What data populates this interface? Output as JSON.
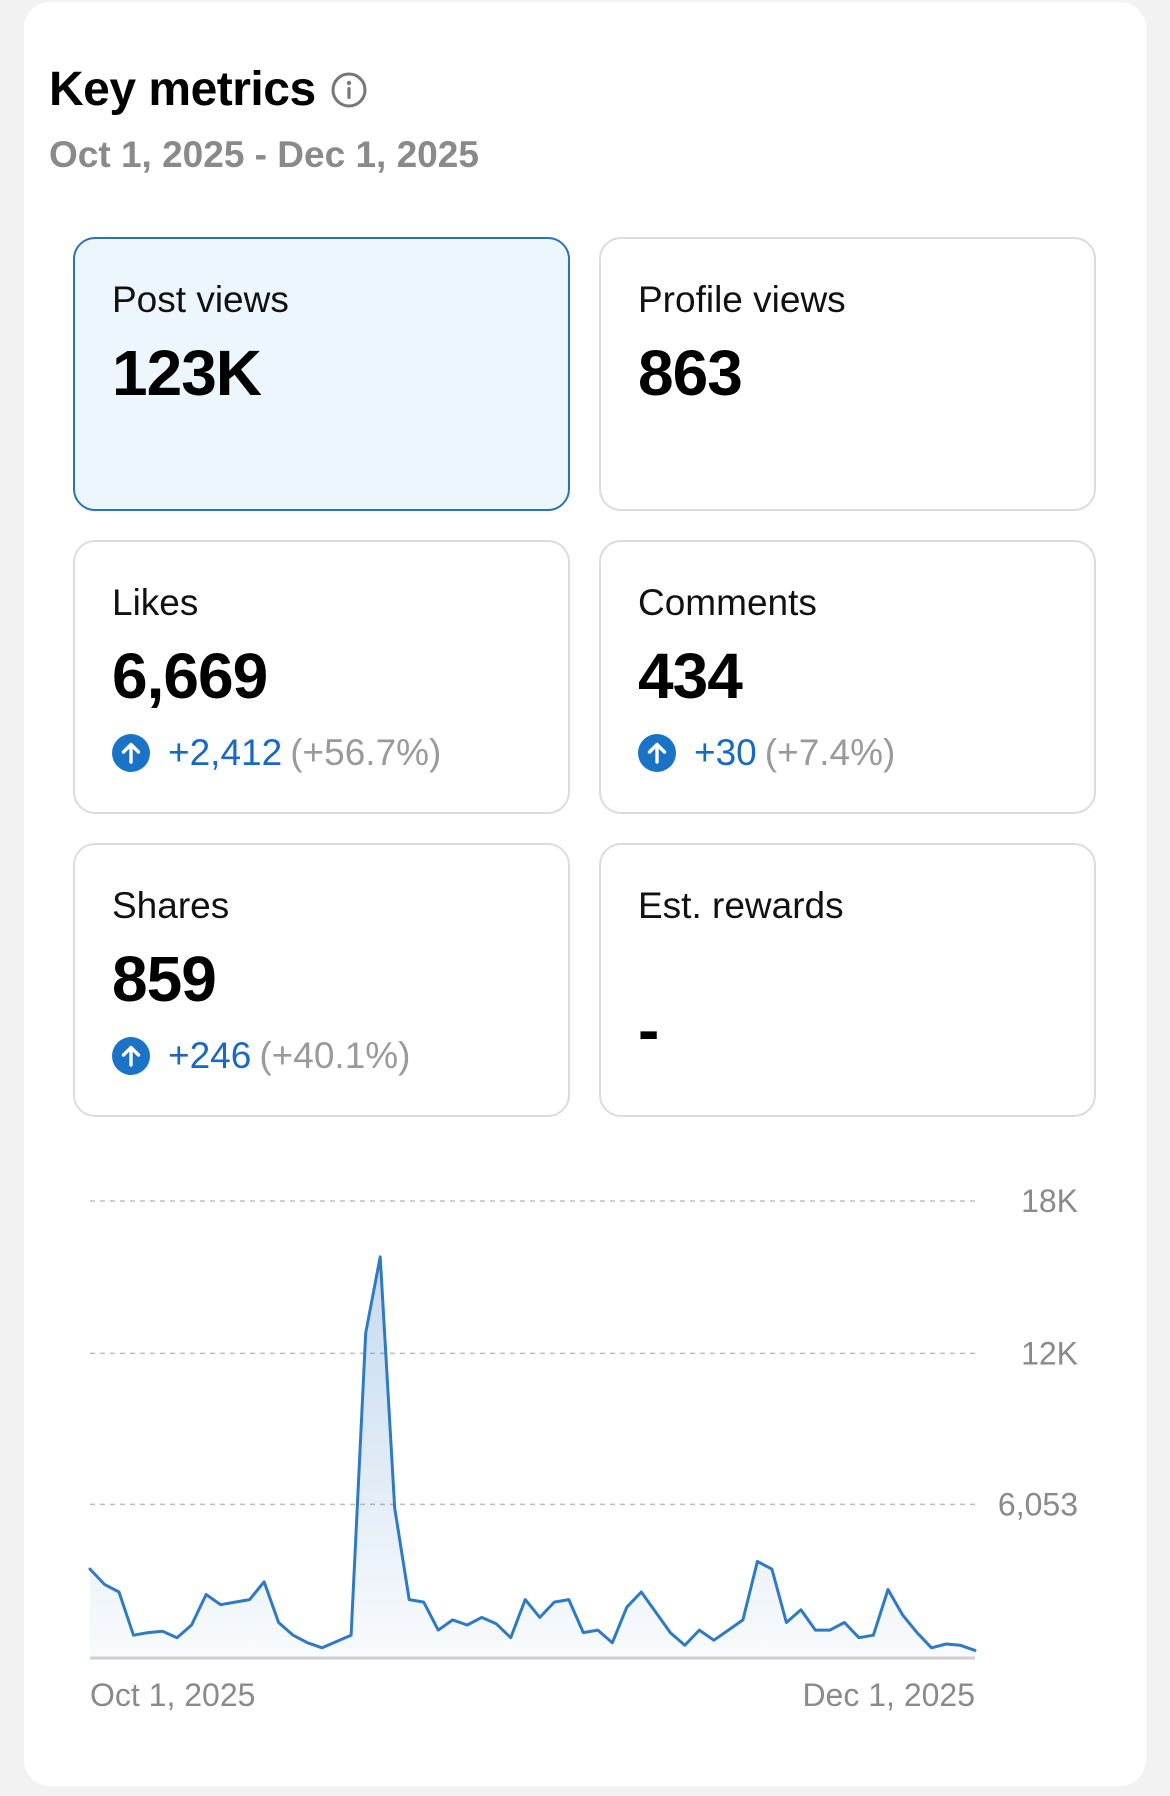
{
  "header": {
    "title": "Key metrics",
    "date_range": "Oct 1, 2025 - Dec 1, 2025"
  },
  "metrics": [
    {
      "id": "post-views",
      "label": "Post views",
      "value": "123K",
      "selected": true
    },
    {
      "id": "profile-views",
      "label": "Profile views",
      "value": "863"
    },
    {
      "id": "likes",
      "label": "Likes",
      "value": "6,669",
      "delta": "+2,412",
      "pct": "(+56.7%)"
    },
    {
      "id": "comments",
      "label": "Comments",
      "value": "434",
      "delta": "+30",
      "pct": "(+7.4%)"
    },
    {
      "id": "shares",
      "label": "Shares",
      "value": "859",
      "delta": "+246",
      "pct": "(+40.1%)"
    },
    {
      "id": "est-rewards",
      "label": "Est. rewards",
      "value": "-"
    }
  ],
  "colors": {
    "accent": "#1a73c7",
    "selected_bg": "#eef6fd",
    "selected_border": "#2a73b8",
    "line": "#2f7ac4",
    "muted": "#8a8a8a"
  },
  "chart_data": {
    "type": "area",
    "xlabel_start": "Oct 1, 2025",
    "xlabel_end": "Dec 1, 2025",
    "y_ticks": [
      "18K",
      "12K",
      "6,053"
    ],
    "y_tick_values": [
      18000,
      12000,
      6053
    ],
    "ylim": [
      0,
      18000
    ],
    "grid": true,
    "x": [
      "2025-10-01",
      "2025-10-02",
      "2025-10-03",
      "2025-10-04",
      "2025-10-05",
      "2025-10-06",
      "2025-10-07",
      "2025-10-08",
      "2025-10-09",
      "2025-10-10",
      "2025-10-11",
      "2025-10-12",
      "2025-10-13",
      "2025-10-14",
      "2025-10-15",
      "2025-10-16",
      "2025-10-17",
      "2025-10-18",
      "2025-10-19",
      "2025-10-20",
      "2025-10-21",
      "2025-10-22",
      "2025-10-23",
      "2025-10-24",
      "2025-10-25",
      "2025-10-26",
      "2025-10-27",
      "2025-10-28",
      "2025-10-29",
      "2025-10-30",
      "2025-10-31",
      "2025-11-01",
      "2025-11-02",
      "2025-11-03",
      "2025-11-04",
      "2025-11-05",
      "2025-11-06",
      "2025-11-07",
      "2025-11-08",
      "2025-11-09",
      "2025-11-10",
      "2025-11-11",
      "2025-11-12",
      "2025-11-13",
      "2025-11-14",
      "2025-11-15",
      "2025-11-16",
      "2025-11-17",
      "2025-11-18",
      "2025-11-19",
      "2025-11-20",
      "2025-11-21",
      "2025-11-22",
      "2025-11-23",
      "2025-11-24",
      "2025-11-25",
      "2025-11-26",
      "2025-11-27",
      "2025-11-28",
      "2025-11-29",
      "2025-11-30",
      "2025-12-01"
    ],
    "values": [
      3500,
      2900,
      2600,
      900,
      1000,
      1050,
      800,
      1300,
      2500,
      2100,
      2200,
      2300,
      3000,
      1400,
      900,
      600,
      400,
      650,
      900,
      12800,
      15800,
      5900,
      2300,
      2200,
      1100,
      1500,
      1300,
      1600,
      1350,
      800,
      2300,
      1600,
      2200,
      2300,
      1000,
      1100,
      600,
      2000,
      2600,
      1800,
      1000,
      500,
      1100,
      700,
      1100,
      1500,
      3800,
      3500,
      1400,
      1900,
      1100,
      1100,
      1400,
      800,
      900,
      2700,
      1700,
      1000,
      400,
      550,
      500,
      300
    ]
  }
}
